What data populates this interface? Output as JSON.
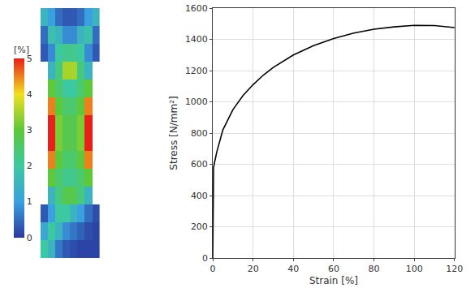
{
  "chart_data": [
    {
      "type": "heatmap",
      "tick_labels": false,
      "cells": [
        [
          1.5,
          1.0,
          0.5,
          0.3,
          0.3,
          0.5,
          1.0,
          1.5
        ],
        [
          0.5,
          1.8,
          1.5,
          0.8,
          0.8,
          1.5,
          1.8,
          0.5
        ],
        [
          0.3,
          0.8,
          2.0,
          2.2,
          2.2,
          2.0,
          0.8,
          0.3
        ],
        [
          null,
          1.5,
          2.3,
          3.5,
          3.5,
          2.3,
          1.5,
          null
        ],
        [
          null,
          3.0,
          2.5,
          2.0,
          2.0,
          2.5,
          3.0,
          null
        ],
        [
          null,
          4.5,
          3.0,
          2.5,
          2.5,
          3.0,
          4.5,
          null
        ],
        [
          null,
          5.0,
          3.2,
          2.8,
          2.8,
          3.2,
          5.0,
          null
        ],
        [
          null,
          5.0,
          3.2,
          2.8,
          2.8,
          3.2,
          5.0,
          null
        ],
        [
          null,
          4.5,
          3.0,
          2.5,
          2.5,
          3.0,
          4.5,
          null
        ],
        [
          null,
          3.0,
          2.5,
          2.2,
          2.2,
          2.5,
          3.0,
          null
        ],
        [
          null,
          1.5,
          2.3,
          2.8,
          2.8,
          2.3,
          1.5,
          null
        ],
        [
          0.3,
          1.0,
          2.0,
          2.0,
          1.5,
          1.0,
          0.5,
          0.2
        ],
        [
          1.2,
          2.0,
          1.5,
          0.8,
          0.6,
          0.4,
          0.2,
          0.1
        ],
        [
          2.0,
          1.5,
          0.6,
          0.3,
          0.2,
          0.1,
          0.1,
          0.1
        ]
      ],
      "colorbar": {
        "title": "[%]",
        "range": [
          0,
          5
        ],
        "ticks": [
          0,
          1,
          2,
          3,
          4,
          5
        ]
      }
    },
    {
      "type": "line",
      "x_label": "Strain [%]",
      "y_label": "Stress [N/mm²]",
      "x": [
        0,
        0.4,
        1,
        2,
        5,
        10,
        15,
        20,
        25,
        30,
        40,
        50,
        60,
        70,
        80,
        90,
        100,
        110,
        120
      ],
      "values": [
        0,
        580,
        620,
        680,
        820,
        950,
        1040,
        1110,
        1170,
        1220,
        1300,
        1360,
        1405,
        1440,
        1465,
        1480,
        1490,
        1488,
        1475
      ],
      "color": "#000000",
      "xlim": [
        0,
        120
      ],
      "xticks": [
        0,
        20,
        40,
        60,
        80,
        100,
        120
      ],
      "ylim": [
        0,
        1600
      ],
      "yticks": [
        0,
        200,
        400,
        600,
        800,
        1000,
        1200,
        1400,
        1600
      ],
      "grid": true
    }
  ]
}
